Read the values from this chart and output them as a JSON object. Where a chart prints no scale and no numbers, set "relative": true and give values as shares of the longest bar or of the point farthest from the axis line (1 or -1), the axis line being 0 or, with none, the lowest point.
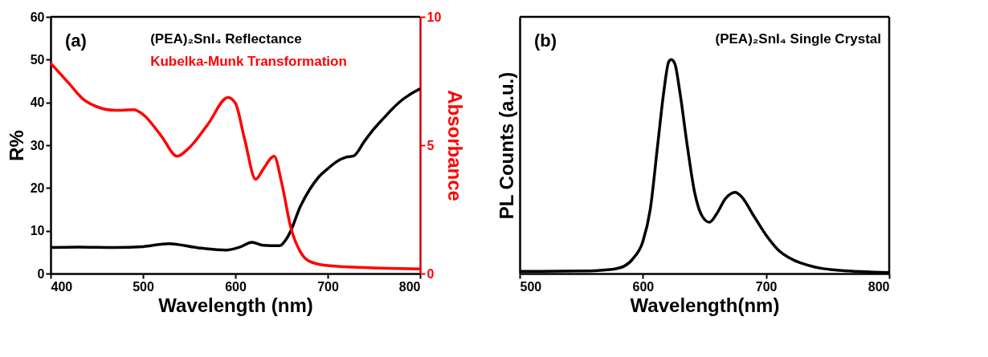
{
  "chart_data": [
    {
      "type": "line",
      "xlabel": "Wavelength (nm)",
      "ylabel": "R%",
      "y2label": "Absorbance",
      "xlim": [
        400,
        800
      ],
      "xticks": [
        400,
        500,
        600,
        700,
        800
      ],
      "ylim": [
        0,
        60
      ],
      "yticks": [
        0,
        10,
        20,
        30,
        40,
        50,
        60
      ],
      "y2lim": [
        0,
        10
      ],
      "y2ticks": [
        0,
        5,
        10
      ],
      "grid": false,
      "annotations": [
        "(a)"
      ],
      "series": [
        {
          "name": "(PEA)₂SnI₄ Reflectance",
          "color": "#000000",
          "x": [
            400,
            430,
            470,
            500,
            528,
            560,
            590,
            605,
            618,
            630,
            648,
            655,
            660,
            670,
            680,
            690,
            700,
            710,
            720,
            728,
            740,
            750,
            760,
            770,
            780,
            790,
            800
          ],
          "values": [
            6.1,
            6.2,
            6.1,
            6.3,
            7.0,
            6.0,
            5.5,
            6.2,
            7.3,
            6.6,
            6.5,
            8,
            10,
            15.5,
            19.5,
            22.5,
            24.5,
            26.2,
            27.2,
            27.5,
            31,
            33.8,
            36.2,
            38.5,
            40.5,
            42,
            43.2
          ]
        },
        {
          "name": "Kubelka-Munk Transformation",
          "color": "#ff0000",
          "axis": "y2",
          "x": [
            400,
            420,
            435,
            450,
            470,
            490,
            500,
            520,
            537,
            550,
            570,
            592,
            600,
            610,
            622,
            630,
            642,
            650,
            660,
            670,
            680,
            700,
            750,
            800
          ],
          "values": [
            8.2,
            7.4,
            6.8,
            6.5,
            6.36,
            6.38,
            6.2,
            5.35,
            4.57,
            4.9,
            5.8,
            6.86,
            6.64,
            5.24,
            3.67,
            4.06,
            4.57,
            3.56,
            1.8,
            0.87,
            0.48,
            0.31,
            0.22,
            0.18
          ]
        }
      ]
    },
    {
      "type": "line",
      "xlabel": "Wavelength(nm)",
      "ylabel": "PL Counts (a.u.)",
      "xlim": [
        500,
        800
      ],
      "xticks": [
        500,
        600,
        700,
        800
      ],
      "relative": true,
      "tick_labels": "x",
      "grid": false,
      "annotations": [
        "(b)"
      ],
      "series": [
        {
          "name": "(PEA)₂SnI₄ Single Crystal",
          "color": "#000000",
          "x": [
            500,
            550,
            575,
            585,
            592,
            600,
            606,
            612,
            617,
            621,
            623,
            626,
            630,
            636,
            642,
            648,
            654,
            660,
            667,
            675,
            680,
            690,
            700,
            710,
            720,
            740,
            760,
            800
          ],
          "values": [
            0.01,
            0.012,
            0.02,
            0.035,
            0.07,
            0.15,
            0.3,
            0.6,
            0.85,
            0.99,
            1,
            0.98,
            0.85,
            0.6,
            0.38,
            0.27,
            0.24,
            0.28,
            0.35,
            0.38,
            0.36,
            0.27,
            0.18,
            0.11,
            0.07,
            0.03,
            0.015,
            0.005
          ]
        }
      ]
    }
  ]
}
